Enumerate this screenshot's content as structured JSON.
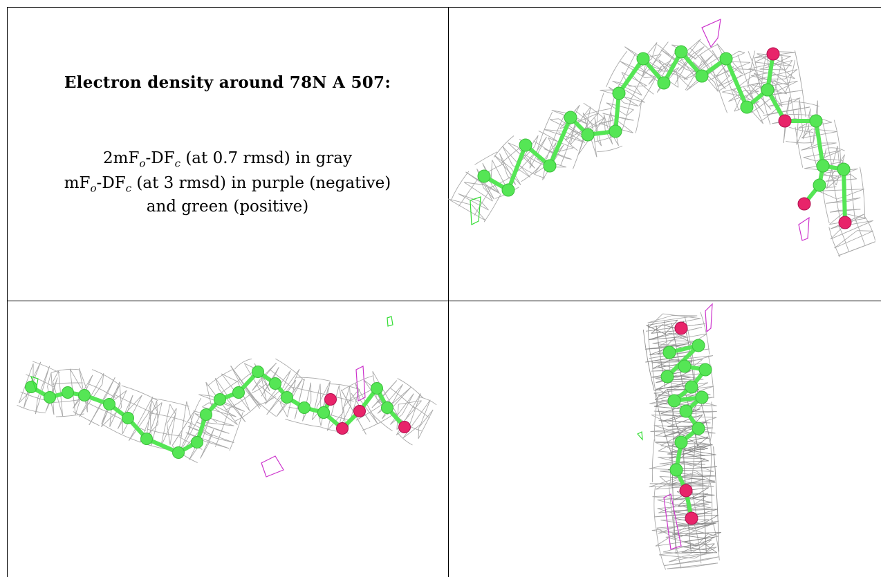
{
  "caption": {
    "title": "Electron density around 78N A 507:",
    "line1": {
      "prefix": "2mF",
      "sub1": "o",
      "mid": "-DF",
      "sub2": "c",
      "suffix": " (at 0.7 rmsd) in gray"
    },
    "line2": {
      "prefix": "mF",
      "sub1": "o",
      "mid": "-DF",
      "sub2": "c",
      "suffix": " (at 3 rmsd) in purple (negative)"
    },
    "line3": "and green (positive)"
  },
  "colors": {
    "carbon": "#55e655",
    "oxygen": "#e8246a",
    "mesh_gray": "#9a9a9a",
    "positive": "#33dd33",
    "negative": "#cc33cc",
    "border": "#000000"
  },
  "views": [
    "view-top-right",
    "view-bottom-left",
    "view-bottom-right"
  ]
}
